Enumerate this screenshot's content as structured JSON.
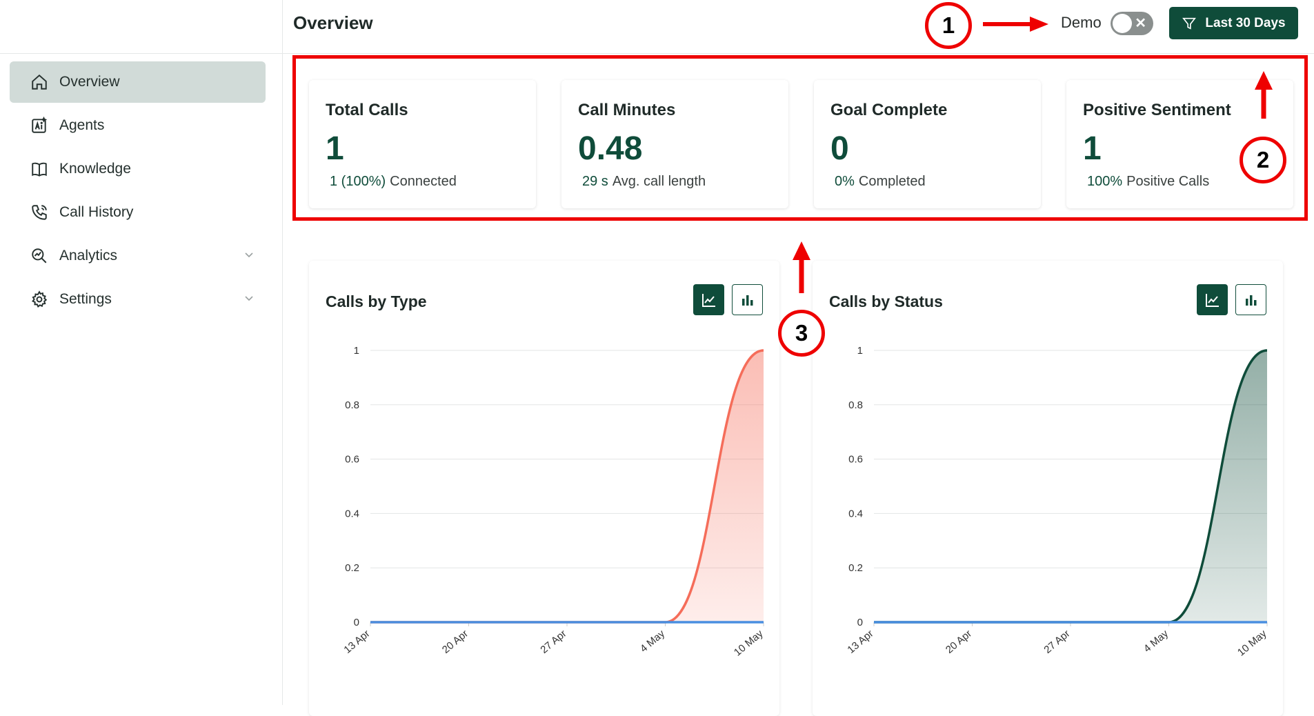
{
  "header": {
    "title": "Overview",
    "demo_label": "Demo",
    "filter_label": "Last 30 Days"
  },
  "sidebar": {
    "items": [
      {
        "label": "Overview",
        "icon": "home-icon",
        "active": true
      },
      {
        "label": "Agents",
        "icon": "ai-agent-icon"
      },
      {
        "label": "Knowledge",
        "icon": "book-icon"
      },
      {
        "label": "Call History",
        "icon": "phone-icon"
      },
      {
        "label": "Analytics",
        "icon": "analytics-icon",
        "expandable": true
      },
      {
        "label": "Settings",
        "icon": "gear-icon",
        "expandable": true
      }
    ]
  },
  "stats": [
    {
      "title": "Total Calls",
      "value": "1",
      "highlight": "1 (100%)",
      "sub": "Connected"
    },
    {
      "title": "Call Minutes",
      "value": "0.48",
      "highlight": "29 s",
      "sub": "Avg. call length"
    },
    {
      "title": "Goal Complete",
      "value": "0",
      "highlight": "0%",
      "sub": "Completed"
    },
    {
      "title": "Positive Sentiment",
      "value": "1",
      "highlight": "100%",
      "sub": "Positive Calls"
    }
  ],
  "annotations": [
    "1",
    "2",
    "3"
  ],
  "colors": {
    "brand": "#0f4c3a",
    "accent_red": "#ee0000",
    "series_coral": "#f56d5a",
    "series_blue": "#4a8fe0"
  },
  "chart_data": [
    {
      "type": "area",
      "title": "Calls by Type",
      "x": [
        "13 Apr",
        "20 Apr",
        "27 Apr",
        "4 May",
        "10 May"
      ],
      "ylim": [
        0,
        1
      ],
      "yticks": [
        "0",
        "0.2",
        "0.4",
        "0.6",
        "0.8",
        "1"
      ],
      "series": [
        {
          "color": "#f56d5a",
          "points": [
            [
              0,
              0
            ],
            [
              1,
              0
            ],
            [
              2,
              0
            ],
            [
              3,
              0
            ],
            [
              4,
              1
            ]
          ]
        },
        {
          "color": "#4a8fe0",
          "points": [
            [
              0,
              0
            ],
            [
              1,
              0
            ],
            [
              2,
              0
            ],
            [
              3,
              0
            ],
            [
              4,
              0
            ]
          ]
        }
      ]
    },
    {
      "type": "area",
      "title": "Calls by Status",
      "x": [
        "13 Apr",
        "20 Apr",
        "27 Apr",
        "4 May",
        "10 May"
      ],
      "ylim": [
        0,
        1
      ],
      "yticks": [
        "0",
        "0.2",
        "0.4",
        "0.6",
        "0.8",
        "1"
      ],
      "series": [
        {
          "color": "#0f4c3a",
          "points": [
            [
              0,
              0
            ],
            [
              1,
              0
            ],
            [
              2,
              0
            ],
            [
              3,
              0
            ],
            [
              4,
              1
            ]
          ]
        },
        {
          "color": "#4a8fe0",
          "points": [
            [
              0,
              0
            ],
            [
              1,
              0
            ],
            [
              2,
              0
            ],
            [
              3,
              0
            ],
            [
              4,
              0
            ]
          ]
        }
      ]
    }
  ]
}
